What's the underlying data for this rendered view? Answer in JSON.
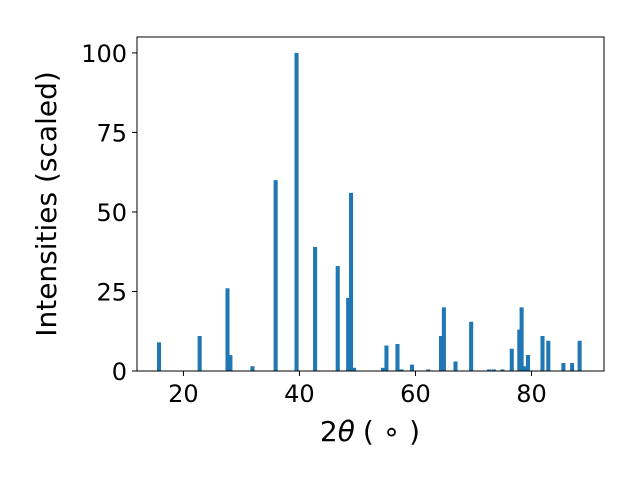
{
  "chart_data": {
    "type": "bar",
    "title": "",
    "xlabel_parts": {
      "prefix": "2",
      "theta": "θ",
      "unit": "( ∘ )"
    },
    "ylabel": "Intensities (scaled)",
    "xlim": [
      12,
      92.5
    ],
    "ylim": [
      0,
      105
    ],
    "xticks": [
      20,
      40,
      60,
      80
    ],
    "yticks": [
      0,
      25,
      50,
      75,
      100
    ],
    "grid": false,
    "bar_color": "#1f77b4",
    "bar_width": 0.7,
    "x": [
      15.8,
      22.8,
      27.6,
      28.1,
      31.9,
      35.9,
      39.5,
      42.7,
      46.6,
      48.4,
      48.9,
      49.4,
      54.4,
      55.0,
      56.9,
      57.6,
      59.4,
      62.2,
      64.4,
      64.9,
      66.9,
      69.6,
      72.7,
      73.5,
      75.0,
      76.6,
      77.9,
      78.3,
      78.8,
      79.4,
      81.9,
      82.9,
      85.5,
      87.0,
      88.3
    ],
    "values": [
      9,
      11,
      26,
      5,
      1.5,
      60,
      100,
      39,
      33,
      23,
      56,
      1,
      1,
      8,
      8.5,
      0.5,
      2,
      0.5,
      11,
      20,
      3,
      15.5,
      0.5,
      0.5,
      0.5,
      7,
      13,
      20,
      1.5,
      5,
      11,
      9.5,
      2.5,
      2.5,
      9.5
    ]
  }
}
